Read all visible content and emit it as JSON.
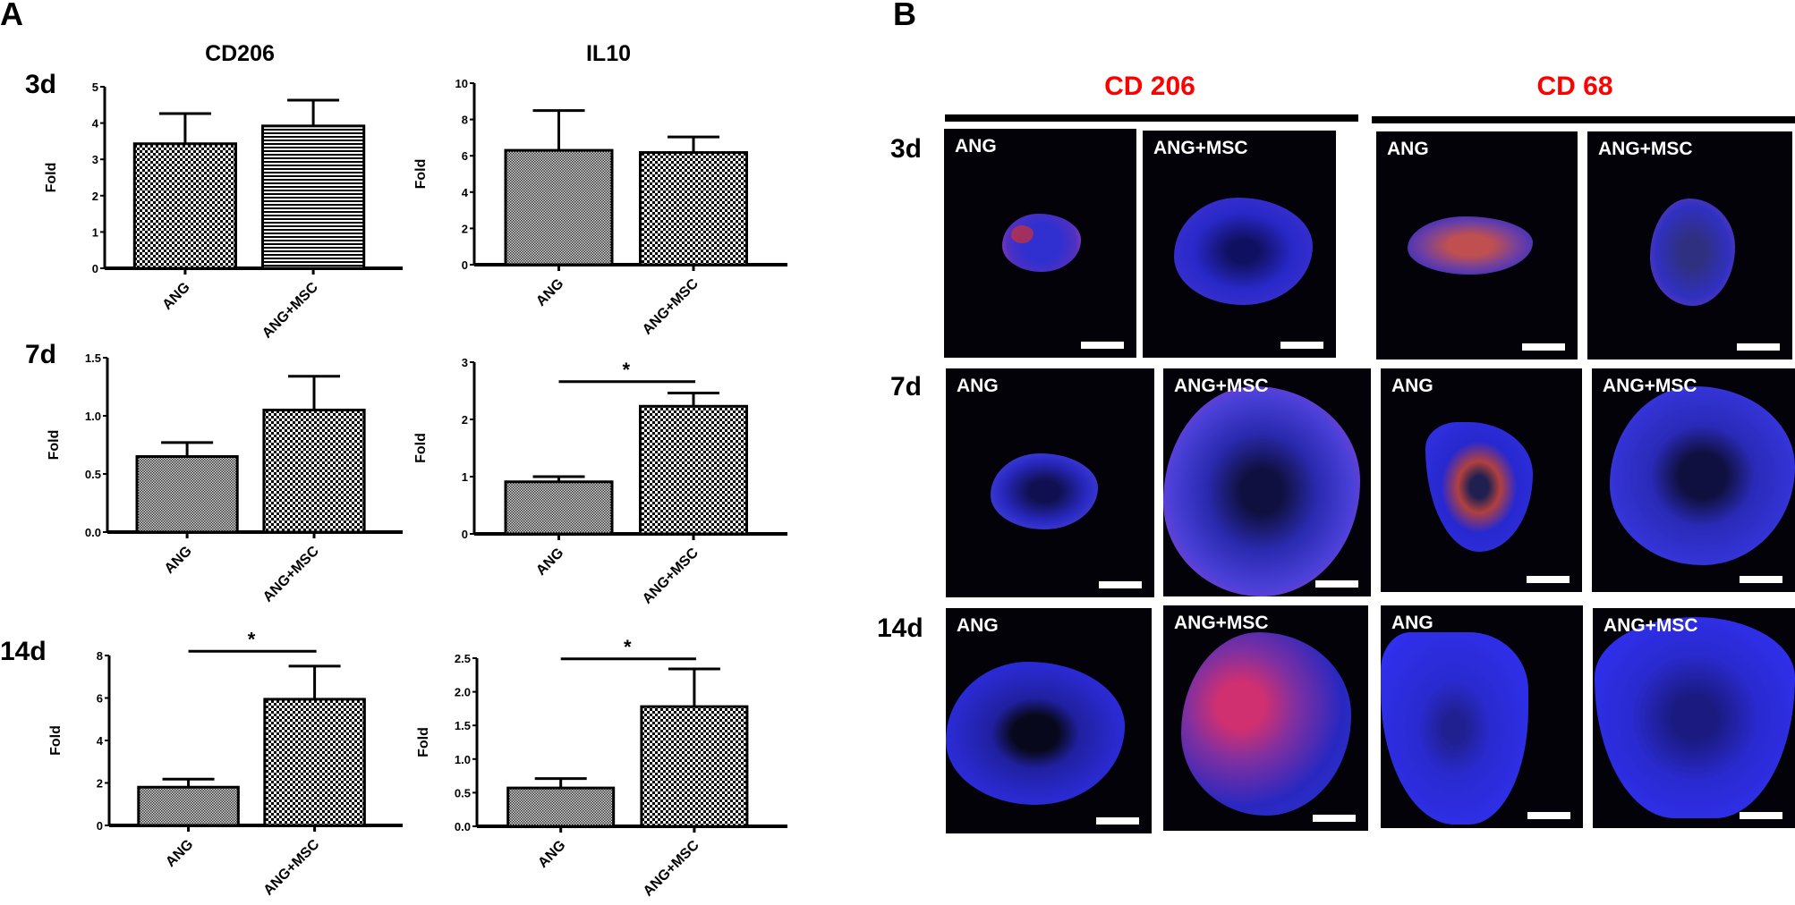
{
  "panels": {
    "a_label": "A",
    "b_label": "B"
  },
  "panel_a": {
    "col_titles": [
      "CD206",
      "IL10"
    ],
    "day_labels": [
      "3d",
      "7d",
      "14d"
    ],
    "ylabel": "Fold",
    "categories": [
      "ANG",
      "ANG+MSC"
    ],
    "significance_marker": "*"
  },
  "panel_b": {
    "markers": [
      "CD 206",
      "CD 68"
    ],
    "day_labels": [
      "3d",
      "7d",
      "14d"
    ],
    "image_labels": [
      "ANG",
      "ANG+MSC",
      "ANG",
      "ANG+MSC"
    ],
    "marker_color": "#ff0000",
    "stain_colors": {
      "dapi": "#2020ff",
      "marker": "#ff3030"
    }
  },
  "chart_data": [
    {
      "type": "bar",
      "title": "CD206",
      "subtitle": "3d",
      "categories": [
        "ANG",
        "ANG+MSC"
      ],
      "values": [
        3.43,
        3.92
      ],
      "error_upper": [
        4.26,
        4.63
      ],
      "ylabel": "Fold",
      "xlabel": "",
      "ylim": [
        0,
        5
      ],
      "yticks": [
        "0",
        "1",
        "2",
        "3",
        "4",
        "5"
      ],
      "patterns": [
        "checker",
        "hlines"
      ],
      "significance": null,
      "grid": false,
      "legend": null
    },
    {
      "type": "bar",
      "title": "IL10",
      "subtitle": "3d",
      "categories": [
        "ANG",
        "ANG+MSC"
      ],
      "values": [
        6.3,
        6.18
      ],
      "error_upper": [
        8.49,
        7.04
      ],
      "ylabel": "Fold",
      "xlabel": "",
      "ylim": [
        0,
        10
      ],
      "yticks": [
        "0",
        "2",
        "4",
        "6",
        "8",
        "10"
      ],
      "patterns": [
        "fine-checker",
        "checker"
      ],
      "significance": null,
      "grid": false,
      "legend": null
    },
    {
      "type": "bar",
      "title": "CD206",
      "subtitle": "7d",
      "categories": [
        "ANG",
        "ANG+MSC"
      ],
      "values": [
        0.65,
        1.05
      ],
      "error_upper": [
        0.77,
        1.34
      ],
      "ylabel": "Fold",
      "xlabel": "",
      "ylim": [
        0,
        1.5
      ],
      "yticks": [
        "0.0",
        "0.5",
        "1.0",
        "1.5"
      ],
      "patterns": [
        "fine-checker",
        "checker"
      ],
      "significance": null,
      "grid": false,
      "legend": null
    },
    {
      "type": "bar",
      "title": "IL10",
      "subtitle": "7d",
      "categories": [
        "ANG",
        "ANG+MSC"
      ],
      "values": [
        0.91,
        2.23
      ],
      "error_upper": [
        1.0,
        2.46
      ],
      "ylabel": "Fold",
      "xlabel": "",
      "ylim": [
        0,
        3
      ],
      "yticks": [
        "0",
        "1",
        "2",
        "3"
      ],
      "patterns": [
        "fine-checker",
        "checker"
      ],
      "significance": {
        "label": "*",
        "y": 2.66
      },
      "grid": false,
      "legend": null
    },
    {
      "type": "bar",
      "title": "CD206",
      "subtitle": "14d",
      "categories": [
        "ANG",
        "ANG+MSC"
      ],
      "values": [
        1.8,
        5.94
      ],
      "error_upper": [
        2.18,
        7.5
      ],
      "ylabel": "Fold",
      "xlabel": "",
      "ylim": [
        0,
        8
      ],
      "yticks": [
        "0",
        "2",
        "4",
        "6",
        "8"
      ],
      "patterns": [
        "fine-checker",
        "checker"
      ],
      "significance": {
        "label": "*",
        "y": 8.2
      },
      "grid": false,
      "legend": null
    },
    {
      "type": "bar",
      "title": "IL10",
      "subtitle": "14d",
      "categories": [
        "ANG",
        "ANG+MSC"
      ],
      "values": [
        0.57,
        1.78
      ],
      "error_upper": [
        0.71,
        2.34
      ],
      "ylabel": "Fold",
      "xlabel": "",
      "ylim": [
        0,
        2.5
      ],
      "yticks": [
        "0.0",
        "0.5",
        "1.0",
        "1.5",
        "2.0",
        "2.5"
      ],
      "patterns": [
        "fine-checker",
        "checker"
      ],
      "significance": {
        "label": "*",
        "y": 2.49
      },
      "grid": false,
      "legend": null
    }
  ]
}
